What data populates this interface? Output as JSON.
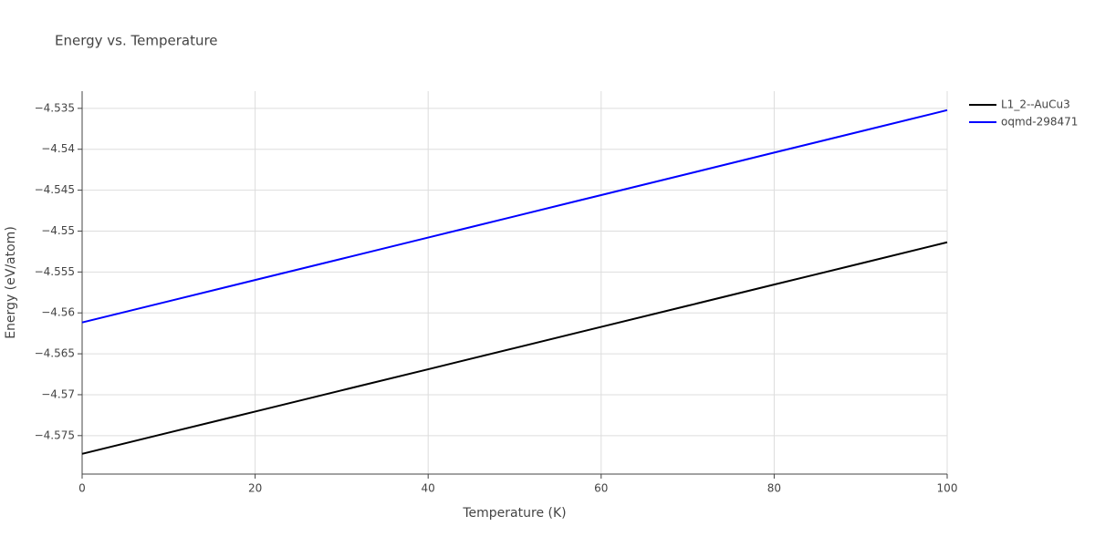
{
  "chart_data": {
    "type": "line",
    "title": "Energy vs. Temperature",
    "x_label": "Temperature (K)",
    "y_label": "Energy (eV/atom)",
    "x": [
      0,
      10,
      20,
      30,
      40,
      50,
      60,
      70,
      80,
      90,
      100
    ],
    "series": [
      {
        "name": "L1_2--AuCu3",
        "color": "#000000",
        "values": [
          -4.57723,
          -4.57464,
          -4.57206,
          -4.56947,
          -4.56689,
          -4.5643,
          -4.56171,
          -4.55913,
          -4.55654,
          -4.55396,
          -4.55137
        ]
      },
      {
        "name": "oqmd-298471",
        "color": "#0000ff",
        "values": [
          -4.56117,
          -4.55858,
          -4.55598,
          -4.55339,
          -4.55079,
          -4.5482,
          -4.5456,
          -4.54301,
          -4.54041,
          -4.53782,
          -4.53522
        ]
      }
    ],
    "xlim": [
      0,
      100
    ],
    "xticks": [
      0,
      20,
      40,
      60,
      80,
      100
    ],
    "ylim": [
      -4.5797,
      -4.5329
    ],
    "yticks": [
      {
        "value": -4.575,
        "label": "−4.575"
      },
      {
        "value": -4.57,
        "label": "−4.57"
      },
      {
        "value": -4.565,
        "label": "−4.565"
      },
      {
        "value": -4.56,
        "label": "−4.56"
      },
      {
        "value": -4.555,
        "label": "−4.555"
      },
      {
        "value": -4.55,
        "label": "−4.55"
      },
      {
        "value": -4.545,
        "label": "−4.545"
      },
      {
        "value": -4.54,
        "label": "−4.54"
      },
      {
        "value": -4.535,
        "label": "−4.535"
      }
    ],
    "grid": true,
    "legend": "right"
  }
}
